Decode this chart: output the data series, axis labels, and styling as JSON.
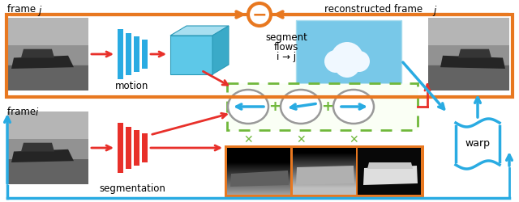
{
  "bg_color": "#ffffff",
  "orange_color": "#E87820",
  "red_color": "#E8302A",
  "blue_color": "#29ABE2",
  "green_color": "#70B83B",
  "label_frame_j": "frame ",
  "label_frame_i": "frame ",
  "label_motion": "motion",
  "label_segmentation": "segmentation",
  "label_segment_flows_1": "segment",
  "label_segment_flows_2": "flows",
  "label_segment_flows_3": "i → j",
  "label_reconstructed": "reconstructed frame ",
  "label_warp": "warp",
  "photo_sky_color": "#b0b0b0",
  "photo_mid_color": "#888888",
  "photo_road_color": "#686868",
  "photo_car_color": "#2a2a2a",
  "cube_front": "#5DC8E8",
  "cube_top": "#A8DFF0",
  "cube_right": "#3AAAC8",
  "cloud_blue": "#87CEEB",
  "cloud_white": "#f0f8ff"
}
